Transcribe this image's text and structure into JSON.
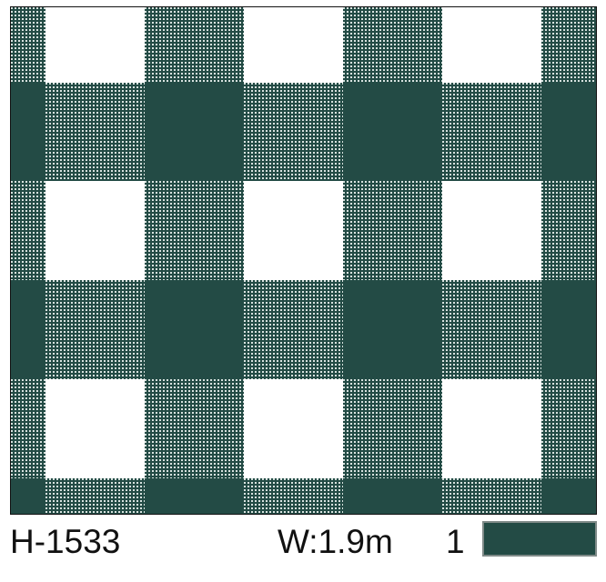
{
  "product": {
    "code": "H-1533",
    "width": "W:1.9m",
    "color_number": "1",
    "color_swatch": "#234b45"
  },
  "pattern": {
    "type": "gingham check",
    "colors": {
      "dark": "#234b45",
      "light": "#ffffff",
      "dot": "#d8e2df"
    }
  }
}
